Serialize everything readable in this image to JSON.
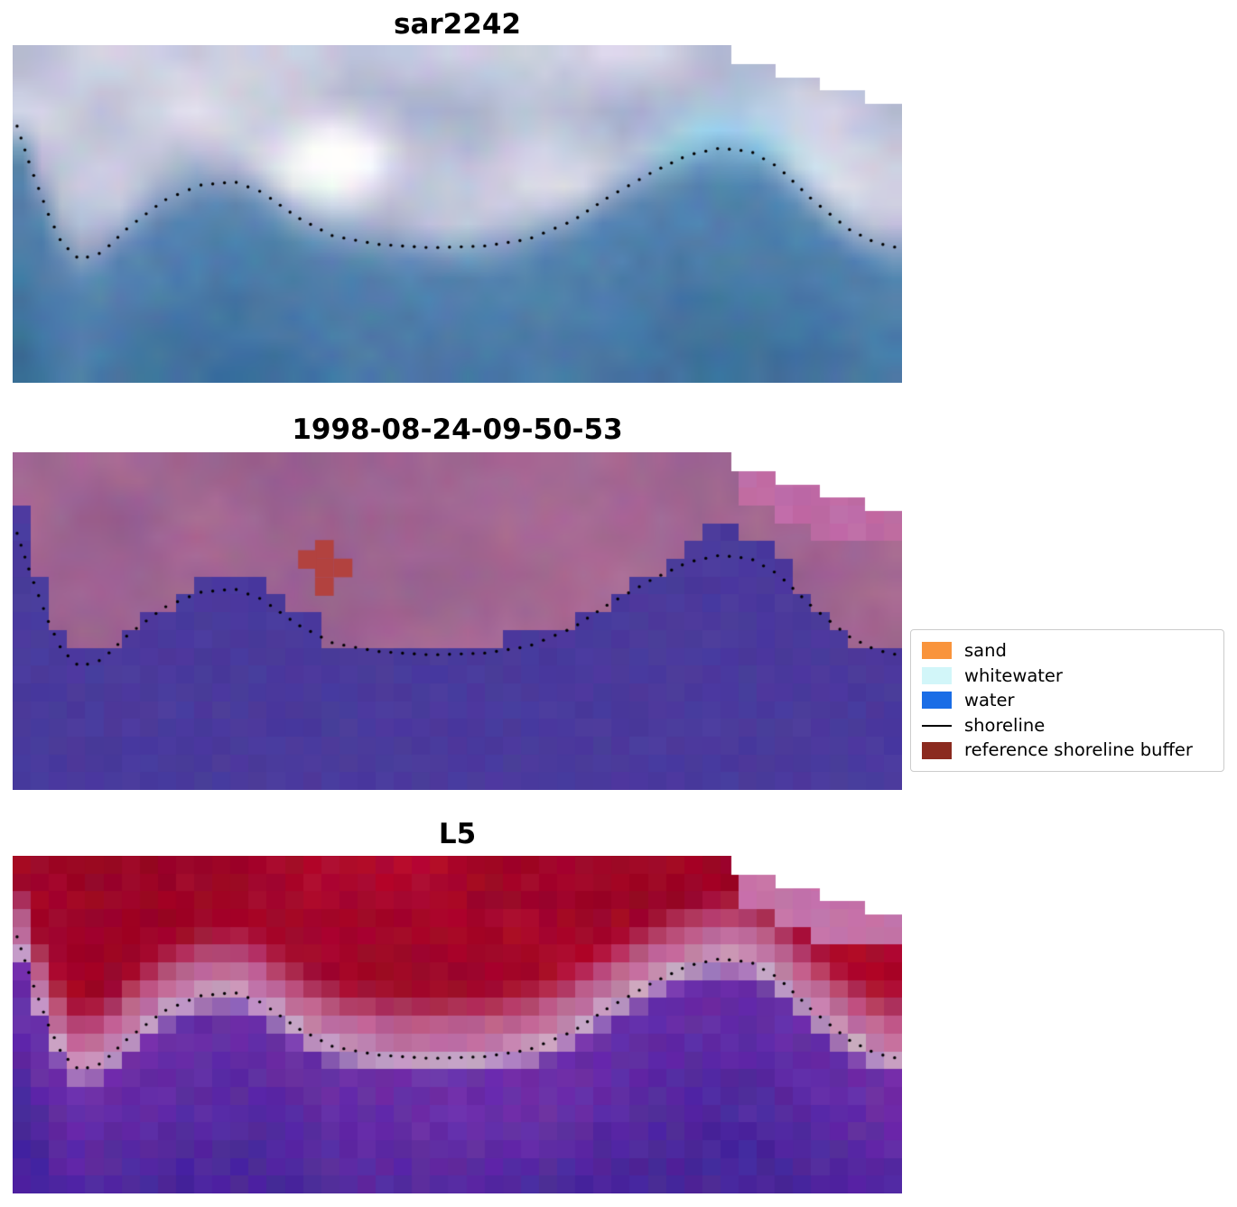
{
  "chart_data": {
    "type": "heatmap",
    "description": "Three stacked satellite image panels with detected shoreline dots and a classification legend",
    "panels": [
      {
        "id": "sar2242",
        "title": "sar2242",
        "style": "sar",
        "colors": {
          "land_dark": "#98a2c4",
          "land_light": "#e9e7f0",
          "white_blob": "#ffffff",
          "cyan_blob": "#9fdef6",
          "water_top": "#5584b0",
          "water_deep": "#3a6d99"
        }
      },
      {
        "id": "classified",
        "title": "1998-08-24-09-50-53",
        "style": "classified",
        "colors": {
          "land_dark": "#8e5b8b",
          "land_light": "#b06f98",
          "water": "#4a3a9c",
          "corner_pink": "#bf6ba5",
          "buffer_red": "#b2423f"
        }
      },
      {
        "id": "L5",
        "title": "L5",
        "style": "l5",
        "colors": {
          "red_top": "#bc0c32",
          "red_dark": "#8f0222",
          "pink_band": "#c06f9e",
          "lavender_line": "#c9a6c6",
          "water_violet": "#6c2ea8",
          "water_deep": "#47269a",
          "corner_pink": "#c573a8"
        }
      }
    ],
    "shoreline": {
      "label": "shoreline",
      "points": [
        [
          0.005,
          0.24
        ],
        [
          0.02,
          0.36
        ],
        [
          0.04,
          0.5
        ],
        [
          0.055,
          0.585
        ],
        [
          0.075,
          0.635
        ],
        [
          0.1,
          0.615
        ],
        [
          0.13,
          0.54
        ],
        [
          0.17,
          0.46
        ],
        [
          0.21,
          0.415
        ],
        [
          0.25,
          0.405
        ],
        [
          0.28,
          0.435
        ],
        [
          0.32,
          0.51
        ],
        [
          0.36,
          0.565
        ],
        [
          0.41,
          0.59
        ],
        [
          0.47,
          0.6
        ],
        [
          0.53,
          0.595
        ],
        [
          0.58,
          0.575
        ],
        [
          0.63,
          0.52
        ],
        [
          0.67,
          0.45
        ],
        [
          0.72,
          0.375
        ],
        [
          0.76,
          0.325
        ],
        [
          0.795,
          0.305
        ],
        [
          0.83,
          0.315
        ],
        [
          0.86,
          0.36
        ],
        [
          0.9,
          0.46
        ],
        [
          0.94,
          0.545
        ],
        [
          0.97,
          0.585
        ],
        [
          0.995,
          0.6
        ]
      ]
    },
    "notch": {
      "x_start": 0.808,
      "step_width": 0.05,
      "first_cut": 0.055,
      "step_drop": 0.04
    },
    "buffer_blob": {
      "cells": [
        [
          0.34,
          0.26
        ],
        [
          0.34,
          0.315
        ],
        [
          0.361,
          0.315
        ],
        [
          0.34,
          0.37
        ],
        [
          0.321,
          0.29
        ]
      ],
      "cell_w": 0.021,
      "cell_h": 0.055
    },
    "legend": {
      "items": [
        {
          "label": "sand",
          "type": "patch",
          "color": "#f9943c"
        },
        {
          "label": "whitewater",
          "type": "patch",
          "color": "#d2f6f9"
        },
        {
          "label": "water",
          "type": "patch",
          "color": "#1a6de6"
        },
        {
          "label": "shoreline",
          "type": "line",
          "color": "#000000"
        },
        {
          "label": "reference shoreline buffer",
          "type": "patch",
          "color": "#8b2a1f"
        }
      ]
    }
  }
}
